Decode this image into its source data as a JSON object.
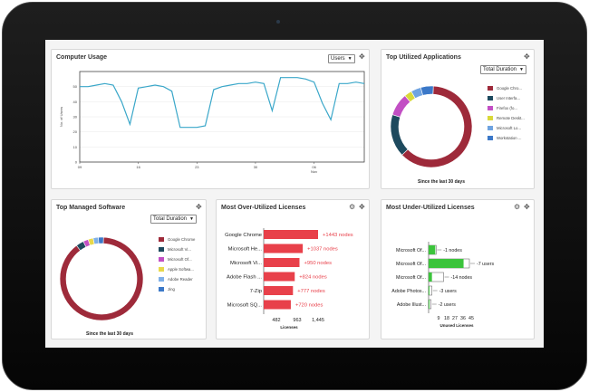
{
  "usage": {
    "title": "Computer Usage",
    "selector": "Users",
    "ylabel": "No. of Users",
    "yticks": [
      "0",
      "10",
      "20",
      "30",
      "40",
      "50"
    ],
    "xticks": [
      "09",
      "16",
      "23",
      "30",
      "06"
    ],
    "xmonth": "Nov",
    "chart_data": {
      "type": "line",
      "ylim": [
        0,
        60
      ],
      "series": [
        {
          "values": [
            50,
            50,
            51,
            52,
            51,
            40,
            25,
            49,
            50,
            51,
            50,
            47,
            23,
            23,
            23,
            24,
            48,
            50,
            51,
            52,
            52,
            53,
            52,
            34,
            56,
            56,
            56,
            55,
            53,
            39,
            28,
            52,
            52,
            53,
            52
          ]
        }
      ],
      "color": "#3aa7c9"
    }
  },
  "apps": {
    "title": "Top Utilized Applications",
    "selector": "Total Duration",
    "footnote": "Since the last 30 days",
    "chart_data": {
      "type": "pie",
      "labels": [
        "Google Chro...",
        "User Interfa...",
        "Firefox (fo...",
        "Remote Deskt...",
        "Microsoft Lo...",
        "Workstation ..."
      ],
      "values": [
        62,
        17,
        9,
        3,
        4,
        5
      ],
      "colors": [
        "#9e2a3a",
        "#1e4a5e",
        "#c24fc4",
        "#d9d83a",
        "#6fa3e0",
        "#3b78c8"
      ]
    }
  },
  "software": {
    "title": "Top Managed Software",
    "selector": "Total Duration",
    "footnote": "Since the last 30 days",
    "chart_data": {
      "type": "pie",
      "labels": [
        "Google Chrome",
        "Microsoft Vi...",
        "Microsoft Of...",
        "Apple Softwa...",
        "Adobe Reader",
        "Jing"
      ],
      "values": [
        89,
        3,
        2,
        2,
        2,
        2
      ],
      "colors": [
        "#9e2a3a",
        "#1e4a5e",
        "#c24fc4",
        "#e8d84a",
        "#7fb0e8",
        "#3b78c8"
      ]
    }
  },
  "over": {
    "title": "Most Over-Utilized Licenses",
    "xlabel": "Licenses",
    "xticks": [
      "482",
      "963",
      "1,445"
    ],
    "chart_data": {
      "type": "bar",
      "categories": [
        "Google Chrome",
        "Microsoft He...",
        "Microsoft Vi...",
        "Adobe Flash ...",
        "7-Zip",
        "Microsoft SQ..."
      ],
      "values": [
        1443,
        1037,
        950,
        824,
        777,
        720
      ],
      "labels": [
        "+1443 nodes",
        "+1037 nodes",
        "+950 nodes",
        "+824 nodes",
        "+777 nodes",
        "+720 nodes"
      ],
      "color": "#e8404a"
    }
  },
  "under": {
    "title": "Most Under-Utilized Licenses",
    "xlabel": "Unused Licenses",
    "xticks": [
      "9",
      "18",
      "27",
      "36",
      "45"
    ],
    "chart_data": {
      "type": "bar",
      "categories": [
        "Microsoft Of...",
        "Microsoft Of...",
        "Microsoft Of...",
        "Adobe Photos...",
        "Adobe Illust..."
      ],
      "used": [
        8,
        42,
        4,
        1,
        1
      ],
      "capacity": [
        9,
        49,
        18,
        4,
        3
      ],
      "labels": [
        "-1 nodes",
        "-7 users",
        "-14 nodes",
        "-3 users",
        "-2 users"
      ],
      "color": "#3cc43c"
    }
  }
}
